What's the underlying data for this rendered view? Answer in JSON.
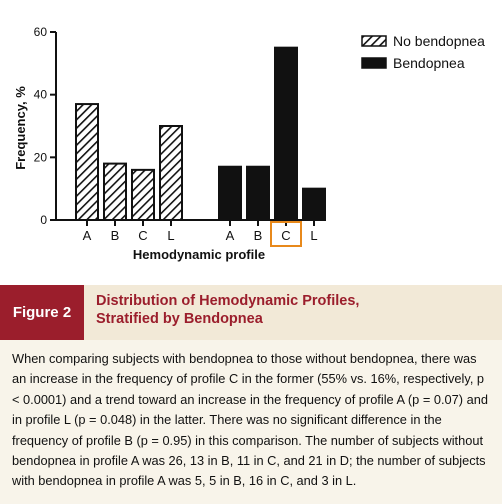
{
  "chart_data": {
    "type": "bar",
    "ylabel": "Frequency, %",
    "xlabel": "Hemodynamic profile",
    "ylim": [
      0,
      60
    ],
    "yticks": [
      "0",
      "20",
      "40",
      "60"
    ],
    "groups": [
      {
        "name": "No bendopnea",
        "categories": [
          "A",
          "B",
          "C",
          "L"
        ],
        "values": [
          37,
          18,
          16,
          30
        ],
        "fill": "hatched"
      },
      {
        "name": "Bendopnea",
        "categories": [
          "A",
          "B",
          "C",
          "L"
        ],
        "values": [
          17,
          17,
          55,
          10
        ],
        "fill": "solid"
      }
    ],
    "legend": {
      "position": "top-right",
      "entries": [
        "No bendopnea",
        "Bendopnea"
      ]
    },
    "highlight": {
      "group": "Bendopnea",
      "category": "C",
      "color": "#e8891b"
    }
  },
  "figure": {
    "label": "Figure 2",
    "title_line1": "Distribution of Hemodynamic Profiles,",
    "title_line2": "Stratified by Bendopnea"
  },
  "caption": "When comparing subjects with bendopnea to those without bendopnea, there was an increase in the frequency of profile C in the former (55% vs. 16%, respectively, p < 0.0001) and a trend toward an increase in the frequency of profile A (p = 0.07) and in profile L (p = 0.048) in the latter. There was no significant difference in the frequency of profile B (p = 0.95) in this comparison. The number of subjects without bendopnea in profile A was 26, 13 in B, 11 in C, and 21 in D; the number of subjects with bendopnea in profile A was 5, 5 in B, 16 in C, and 3 in L.",
  "colors": {
    "accent": "#9b1e2c",
    "band": "#f2e9d7",
    "caption_bg": "#f8f4ea",
    "bar": "#111111"
  }
}
